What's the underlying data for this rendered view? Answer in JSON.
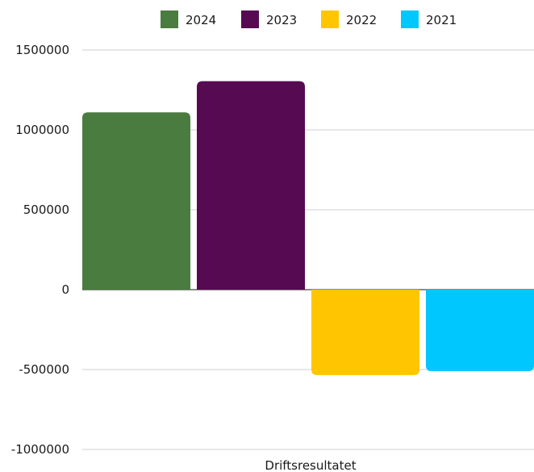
{
  "chart_data": {
    "type": "bar",
    "categories": [
      "Driftsresultatet"
    ],
    "series": [
      {
        "name": "2024",
        "values": [
          1110000
        ],
        "color": "#4a7c3f"
      },
      {
        "name": "2023",
        "values": [
          1305000
        ],
        "color": "#560a52"
      },
      {
        "name": "2022",
        "values": [
          -535000
        ],
        "color": "#ffc600"
      },
      {
        "name": "2021",
        "values": [
          -510000
        ],
        "color": "#00c8ff"
      }
    ],
    "ylim": [
      -1000000,
      1500000
    ],
    "yticks": [
      1500000,
      1000000,
      500000,
      0,
      -500000,
      -1000000
    ],
    "ytick_labels": [
      "1500000",
      "1000000",
      "500000",
      "0",
      "-500000",
      "-1000000"
    ],
    "grid": true,
    "legend_position": "top",
    "title": "",
    "xlabel": "",
    "ylabel": ""
  }
}
